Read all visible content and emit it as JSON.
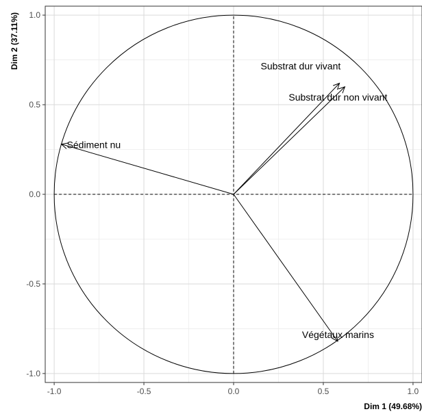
{
  "chart_data": {
    "type": "scatter",
    "subtype": "pca-variable-correlation-circle",
    "title": "",
    "xlabel": "Dim 1 (49.68%)",
    "ylabel": "Dim 2 (37.11%)",
    "xlim": [
      -1.05,
      1.05
    ],
    "ylim": [
      -1.05,
      1.05
    ],
    "x_ticks": [
      {
        "value": -1.0,
        "label": "-1.0"
      },
      {
        "value": -0.5,
        "label": "-0.5"
      },
      {
        "value": 0.0,
        "label": "0.0"
      },
      {
        "value": 0.5,
        "label": "0.5"
      },
      {
        "value": 1.0,
        "label": "1.0"
      }
    ],
    "y_ticks": [
      {
        "value": -1.0,
        "label": "-1.0"
      },
      {
        "value": -0.5,
        "label": "-0.5"
      },
      {
        "value": 0.0,
        "label": "0.0"
      },
      {
        "value": 0.5,
        "label": "0.5"
      },
      {
        "value": 1.0,
        "label": "1.0"
      }
    ],
    "grid": true,
    "unit_circle": true,
    "series": [
      {
        "name": "Substrat dur vivant",
        "x": 0.59,
        "y": 0.62
      },
      {
        "name": "Substrat dur non vivant",
        "x": 0.62,
        "y": 0.6
      },
      {
        "name": "Sédiment nu",
        "x": -0.96,
        "y": 0.28
      },
      {
        "name": "Végétaux marins",
        "x": 0.58,
        "y": -0.82
      }
    ],
    "colors": {
      "background": "#ffffff",
      "panel_border": "#333333",
      "grid_major": "#d9d9d9",
      "grid_minor": "#ececec",
      "circle": "#000000",
      "arrow": "#000000",
      "reference_lines": "#000000",
      "tick_text": "#4d4d4d"
    }
  }
}
